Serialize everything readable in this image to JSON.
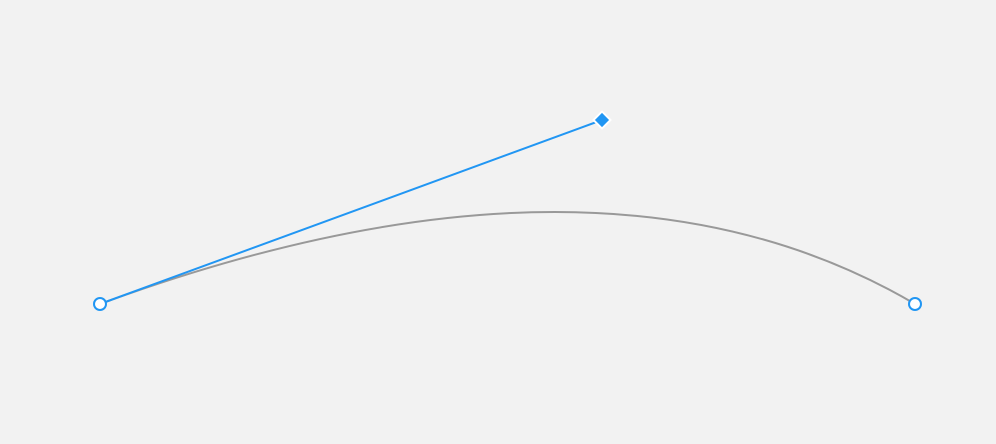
{
  "colors": {
    "background": "#f2f2f2",
    "accent": "#2196f3",
    "curve": "#999999"
  },
  "editor": {
    "curve": {
      "type": "quadratic-bezier"
    },
    "handles": {
      "start_anchor": {
        "shape": "circle",
        "icon": "anchor-point-icon"
      },
      "control_point": {
        "shape": "diamond",
        "icon": "control-point-icon"
      },
      "end_anchor": {
        "shape": "circle",
        "icon": "anchor-point-icon"
      }
    }
  }
}
